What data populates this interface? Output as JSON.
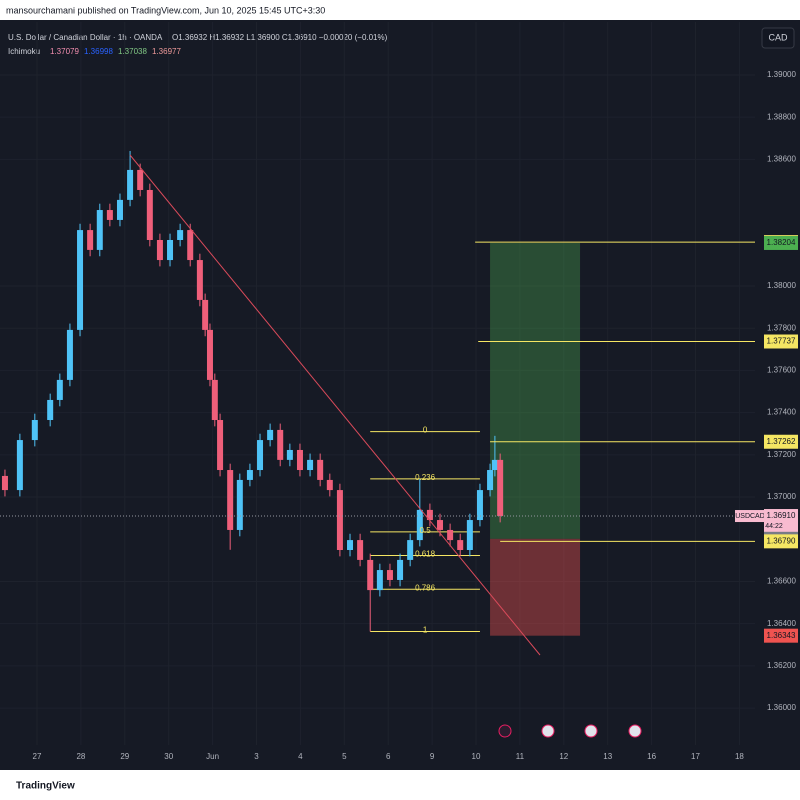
{
  "chart_data": {
    "type": "candlestick",
    "attribution": "mansourchamani published on TradingView.com, Jun 10, 2025 15:45 UTC+3:30",
    "symbol_line": "U.S. Dollar / Canadian Dollar · 1h · OANDA",
    "ohlc_text": "O1.36932 H1.36932 L1.36900 C1.36910 −0.00020 (−0.01%)",
    "indicator": {
      "name": "Ichimoku",
      "values": [
        "1.37079",
        "1.36998",
        "1.37038",
        "1.36977"
      ],
      "colors": [
        "#f48fb1",
        "#2962ff",
        "#81c784",
        "#ef9a9a"
      ]
    },
    "currency": "CAD",
    "brand": "TradingView",
    "symbol_tag": "USDCAD",
    "countdown": "44:22",
    "up_color": "#4fc3f7",
    "down_color": "#ef5f7a",
    "xlim": [
      -0.843,
      16.355
    ],
    "ylim": [
      1.35825,
      1.39251
    ],
    "xticks": [
      {
        "value": 0,
        "label": "27"
      },
      {
        "value": 1,
        "label": "28"
      },
      {
        "value": 2,
        "label": "29"
      },
      {
        "value": 3,
        "label": "30"
      },
      {
        "value": 4,
        "label": "Jun"
      },
      {
        "value": 5,
        "label": "3"
      },
      {
        "value": 6,
        "label": "4"
      },
      {
        "value": 7,
        "label": "5"
      },
      {
        "value": 8,
        "label": "6"
      },
      {
        "value": 9,
        "label": "9"
      },
      {
        "value": 10,
        "label": "10"
      },
      {
        "value": 11,
        "label": "11"
      },
      {
        "value": 12,
        "label": "12"
      },
      {
        "value": 13,
        "label": "13"
      },
      {
        "value": 14,
        "label": "16"
      },
      {
        "value": 15,
        "label": "17"
      },
      {
        "value": 16,
        "label": "18"
      }
    ],
    "yticks": [
      {
        "value": 1.39,
        "label": "1.39000"
      },
      {
        "value": 1.388,
        "label": "1.38800"
      },
      {
        "value": 1.386,
        "label": "1.38600"
      },
      {
        "value": 1.38,
        "label": "1.38000"
      },
      {
        "value": 1.378,
        "label": "1.37800"
      },
      {
        "value": 1.376,
        "label": "1.37600"
      },
      {
        "value": 1.374,
        "label": "1.37400"
      },
      {
        "value": 1.372,
        "label": "1.37200"
      },
      {
        "value": 1.37,
        "label": "1.37000"
      },
      {
        "value": 1.366,
        "label": "1.36600"
      },
      {
        "value": 1.364,
        "label": "1.36400"
      },
      {
        "value": 1.362,
        "label": "1.36200"
      },
      {
        "value": 1.36,
        "label": "1.36000"
      }
    ],
    "x": [
      -0.73,
      -0.39,
      -0.05,
      0.3,
      0.52,
      0.75,
      0.98,
      1.21,
      1.43,
      1.66,
      1.89,
      2.12,
      2.35,
      2.57,
      2.8,
      3.03,
      3.26,
      3.49,
      3.71,
      3.83,
      3.94,
      4.05,
      4.17,
      4.4,
      4.62,
      4.85,
      5.08,
      5.31,
      5.54,
      5.76,
      5.99,
      6.22,
      6.45,
      6.67,
      6.9,
      7.13,
      7.36,
      7.59,
      7.81,
      8.04,
      8.27,
      8.5,
      8.72,
      8.95,
      9.18,
      9.41,
      9.64,
      9.86,
      10.09,
      10.32,
      10.43,
      10.55
    ],
    "open": [
      1.371,
      1.37033,
      1.3727,
      1.37365,
      1.3746,
      1.37555,
      1.37792,
      1.38265,
      1.38171,
      1.3836,
      1.38313,
      1.38408,
      1.3855,
      1.38455,
      1.38218,
      1.38123,
      1.38218,
      1.38265,
      1.38123,
      1.37934,
      1.37792,
      1.37555,
      1.37365,
      1.37128,
      1.36844,
      1.37081,
      1.37128,
      1.3727,
      1.37318,
      1.37176,
      1.37223,
      1.37128,
      1.37176,
      1.37081,
      1.37033,
      1.36749,
      1.36796,
      1.36702,
      1.36559,
      1.36654,
      1.36607,
      1.36702,
      1.36796,
      1.36939,
      1.36891,
      1.36844,
      1.36796,
      1.36749,
      1.36891,
      1.37033,
      1.37128,
      1.37176
    ],
    "high": [
      1.3713,
      1.373,
      1.37395,
      1.3749,
      1.37585,
      1.37822,
      1.38295,
      1.38295,
      1.3839,
      1.3839,
      1.38438,
      1.3864,
      1.3858,
      1.38485,
      1.38248,
      1.38248,
      1.38295,
      1.38295,
      1.38153,
      1.37964,
      1.37822,
      1.37585,
      1.37395,
      1.37158,
      1.37111,
      1.37158,
      1.373,
      1.37348,
      1.37348,
      1.37253,
      1.37253,
      1.37206,
      1.37206,
      1.37111,
      1.37063,
      1.36826,
      1.36826,
      1.36732,
      1.36684,
      1.36684,
      1.36732,
      1.36826,
      1.37086,
      1.36969,
      1.36921,
      1.36874,
      1.36826,
      1.36921,
      1.37063,
      1.37158,
      1.3729,
      1.37206
    ],
    "low": [
      1.37003,
      1.37003,
      1.3724,
      1.37335,
      1.3743,
      1.37525,
      1.37762,
      1.38141,
      1.38141,
      1.38283,
      1.38283,
      1.38378,
      1.38425,
      1.38188,
      1.38093,
      1.38093,
      1.38188,
      1.38093,
      1.37904,
      1.37762,
      1.37525,
      1.37335,
      1.37098,
      1.3675,
      1.36814,
      1.37051,
      1.37098,
      1.3724,
      1.37146,
      1.37146,
      1.37098,
      1.37098,
      1.37051,
      1.37003,
      1.36719,
      1.36719,
      1.36672,
      1.36363,
      1.36529,
      1.36577,
      1.36577,
      1.36672,
      1.36766,
      1.36861,
      1.36814,
      1.36766,
      1.36719,
      1.36719,
      1.36861,
      1.37003,
      1.37098,
      1.3688
    ],
    "close": [
      1.37033,
      1.3727,
      1.37365,
      1.3746,
      1.37555,
      1.37792,
      1.38265,
      1.38171,
      1.3836,
      1.38313,
      1.38408,
      1.3855,
      1.38455,
      1.38218,
      1.38123,
      1.38218,
      1.38265,
      1.38123,
      1.37934,
      1.37792,
      1.37555,
      1.37365,
      1.37128,
      1.36844,
      1.37081,
      1.37128,
      1.3727,
      1.37318,
      1.37176,
      1.37223,
      1.37128,
      1.37176,
      1.37081,
      1.37033,
      1.36749,
      1.36796,
      1.36702,
      1.36559,
      1.36654,
      1.36607,
      1.36702,
      1.36796,
      1.36939,
      1.36891,
      1.36844,
      1.36796,
      1.36749,
      1.36891,
      1.37033,
      1.37128,
      1.37176,
      1.3691
    ],
    "fib": {
      "ratios": [
        0,
        0.236,
        0.5,
        0.618,
        0.786,
        1
      ],
      "prices": [
        1.3731,
        1.37086,
        1.36835,
        1.36723,
        1.36563,
        1.36363
      ],
      "x": [
        7.59,
        10.09
      ],
      "color": "#f5e663"
    },
    "position": {
      "entry": 1.36802,
      "target": 1.38204,
      "stop": 1.36343,
      "x": [
        10.32,
        12.37
      ]
    },
    "price_labels": [
      {
        "value": 1.38208,
        "label": "1.38208",
        "color": "#f5e663",
        "line_from": 9.98
      },
      {
        "value": 1.38204,
        "label": "1.38204",
        "color": "#4caf50"
      },
      {
        "value": 1.37737,
        "label": "1.37737",
        "color": "#f5e663",
        "line_from": 10.05
      },
      {
        "value": 1.37262,
        "label": "1.37262",
        "color": "#f5e663",
        "line_from": 10.32
      },
      {
        "value": 1.3691,
        "label": "1.36910",
        "color": "#f8bbd0"
      },
      {
        "value": 1.36802,
        "label": "1.36802",
        "color": "#787b86"
      },
      {
        "value": 1.3679,
        "label": "1.36790",
        "color": "#f5e663",
        "line_from": 10.55
      },
      {
        "value": 1.36343,
        "label": "1.36343",
        "color": "#ef5350"
      }
    ]
  }
}
